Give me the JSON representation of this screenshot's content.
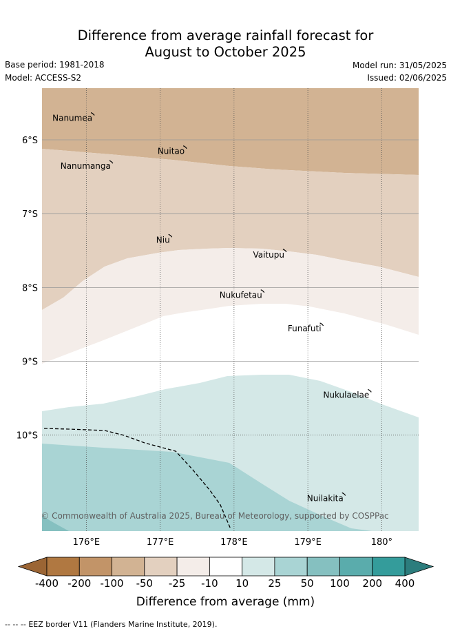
{
  "header": {
    "title_line1": "Difference from average rainfall forecast for",
    "title_line2": "August to October 2025",
    "base_period": "Base period: 1981-2018",
    "model": "Model: ACCESS-S2",
    "model_run": "Model run: 31/05/2025",
    "issued": "Issued: 02/06/2025"
  },
  "map": {
    "lon_range": [
      175.4,
      180.5
    ],
    "lat_range": [
      -11.3,
      -5.3
    ],
    "lat_ticks": [
      {
        "value": -6,
        "label": "6°S"
      },
      {
        "value": -7,
        "label": "7°S"
      },
      {
        "value": -8,
        "label": "8°S"
      },
      {
        "value": -9,
        "label": "9°S"
      },
      {
        "value": -10,
        "label": "10°S"
      }
    ],
    "lon_ticks": [
      {
        "value": 176,
        "label": "176°E"
      },
      {
        "value": 177,
        "label": "177°E"
      },
      {
        "value": 178,
        "label": "178°E"
      },
      {
        "value": 179,
        "label": "179°E"
      },
      {
        "value": 180,
        "label": "180°"
      }
    ],
    "islands": [
      {
        "name": "Nanumea",
        "lon": 176.1,
        "lat": -5.65
      },
      {
        "name": "Nuitao",
        "lon": 177.35,
        "lat": -6.1
      },
      {
        "name": "Nanumanga",
        "lon": 176.35,
        "lat": -6.3
      },
      {
        "name": "Niu",
        "lon": 177.15,
        "lat": -7.3
      },
      {
        "name": "Vaitupu",
        "lon": 178.7,
        "lat": -7.5
      },
      {
        "name": "Nukufetau",
        "lon": 178.4,
        "lat": -8.05
      },
      {
        "name": "Funafuti",
        "lon": 179.2,
        "lat": -8.5
      },
      {
        "name": "Nukulaelae",
        "lon": 179.85,
        "lat": -9.4
      },
      {
        "name": "Nuilakita",
        "lon": 179.5,
        "lat": -10.8
      }
    ],
    "copyright": "© Commonwealth of Australia 2025, Bureau of Meteorology, supported by COSPPac"
  },
  "colorbar": {
    "title": "Difference from average (mm)",
    "labels": [
      "-400",
      "-200",
      "-100",
      "-50",
      "-25",
      "-10",
      "10",
      "25",
      "50",
      "100",
      "200",
      "400"
    ],
    "colors": [
      "#b07841",
      "#c29468",
      "#d2b393",
      "#e3d0bf",
      "#f4ede9",
      "#ffffff",
      "#d4e8e7",
      "#a9d4d4",
      "#85c0c0",
      "#5aacac",
      "#349c9b"
    ],
    "left_arrow_color": "#9b6534",
    "right_arrow_color": "#2c7d7d"
  },
  "legend": {
    "eez_marker": "--  --  --",
    "eez_label": "EEZ border V11 (Flanders Marine Institute, 2019)."
  }
}
